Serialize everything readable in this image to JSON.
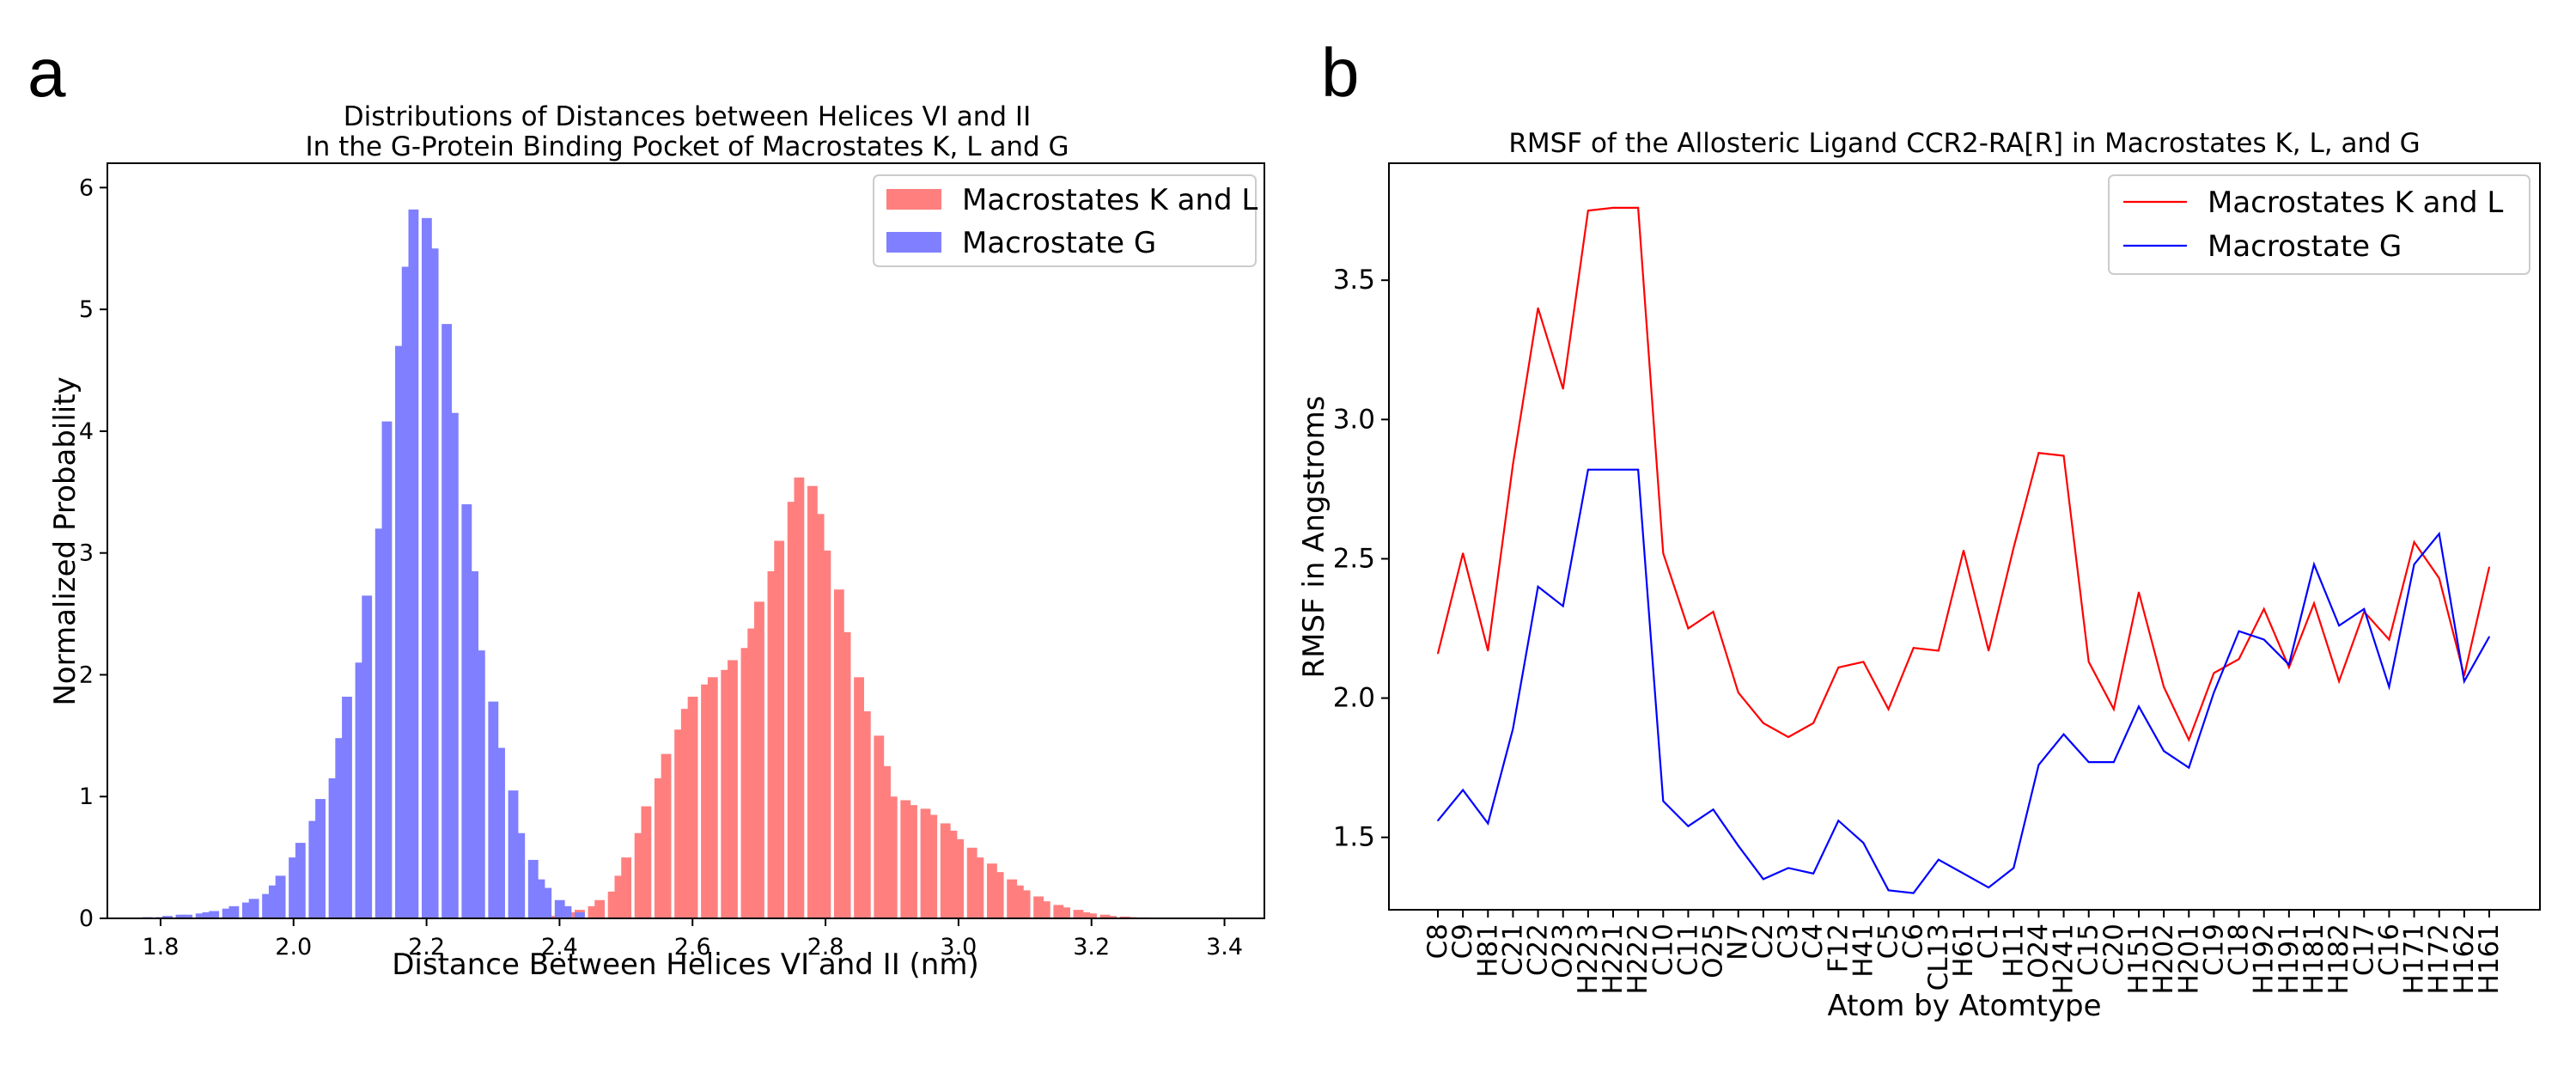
{
  "figure": {
    "panel_a": {
      "letter": "a"
    },
    "panel_b": {
      "letter": "b"
    }
  },
  "chart_data": [
    {
      "type": "bar",
      "subtype": "histogram",
      "title_lines": [
        "Distributions of Distances between Helices VI and II",
        "In the G-Protein Binding Pocket of Macrostates K, L and G"
      ],
      "xlabel": "Distance Between Helices VI and II (nm)",
      "ylabel": "Normalized Probability",
      "xlim": [
        1.72,
        3.46
      ],
      "ylim": [
        0,
        6.2
      ],
      "xticks": [
        "1.8",
        "2.0",
        "2.2",
        "2.4",
        "2.6",
        "2.8",
        "3.0",
        "3.2",
        "3.4"
      ],
      "yticks": [
        "0",
        "1",
        "2",
        "3",
        "4",
        "5",
        "6"
      ],
      "legend_position": "top-right",
      "grid": false,
      "bin_width": 0.0145,
      "series": [
        {
          "name": "Macrostates K and L",
          "color": "#ff7f7f",
          "x": [
            2.37,
            2.39,
            2.4,
            2.42,
            2.43,
            2.45,
            2.46,
            2.48,
            2.49,
            2.5,
            2.52,
            2.53,
            2.55,
            2.56,
            2.58,
            2.59,
            2.6,
            2.62,
            2.63,
            2.65,
            2.66,
            2.68,
            2.69,
            2.7,
            2.72,
            2.73,
            2.75,
            2.76,
            2.78,
            2.79,
            2.8,
            2.82,
            2.83,
            2.85,
            2.86,
            2.88,
            2.89,
            2.9,
            2.92,
            2.93,
            2.95,
            2.96,
            2.98,
            2.99,
            3.0,
            3.02,
            3.03,
            3.05,
            3.06,
            3.08,
            3.09,
            3.1,
            3.12,
            3.13,
            3.15,
            3.16,
            3.18,
            3.19,
            3.2,
            3.22,
            3.23,
            3.25,
            3.26,
            3.28,
            3.29,
            3.3,
            3.32
          ],
          "values": [
            0.01,
            0.02,
            0.03,
            0.05,
            0.07,
            0.1,
            0.15,
            0.22,
            0.35,
            0.5,
            0.7,
            0.92,
            1.15,
            1.35,
            1.55,
            1.72,
            1.82,
            1.92,
            1.98,
            2.04,
            2.12,
            2.22,
            2.38,
            2.6,
            2.85,
            3.1,
            3.42,
            3.62,
            3.55,
            3.32,
            3.02,
            2.7,
            2.35,
            1.98,
            1.7,
            1.5,
            1.25,
            1.0,
            0.97,
            0.93,
            0.9,
            0.85,
            0.78,
            0.72,
            0.65,
            0.58,
            0.5,
            0.45,
            0.38,
            0.32,
            0.27,
            0.23,
            0.18,
            0.14,
            0.11,
            0.09,
            0.07,
            0.05,
            0.04,
            0.03,
            0.02,
            0.015,
            0.01,
            0.008,
            0.006,
            0.004,
            0.003
          ]
        },
        {
          "name": "Macrostate G",
          "color": "#7f7fff",
          "x": [
            1.78,
            1.8,
            1.81,
            1.83,
            1.84,
            1.86,
            1.87,
            1.88,
            1.9,
            1.91,
            1.93,
            1.94,
            1.96,
            1.97,
            1.98,
            2.0,
            2.01,
            2.03,
            2.04,
            2.06,
            2.07,
            2.08,
            2.1,
            2.11,
            2.13,
            2.14,
            2.16,
            2.17,
            2.18,
            2.2,
            2.21,
            2.23,
            2.24,
            2.26,
            2.27,
            2.28,
            2.3,
            2.31,
            2.33,
            2.34,
            2.36,
            2.37,
            2.38,
            2.4,
            2.41,
            2.43
          ],
          "values": [
            0.01,
            0.01,
            0.02,
            0.03,
            0.03,
            0.04,
            0.05,
            0.06,
            0.08,
            0.1,
            0.13,
            0.16,
            0.2,
            0.27,
            0.35,
            0.5,
            0.62,
            0.8,
            0.98,
            1.15,
            1.48,
            1.82,
            2.1,
            2.65,
            3.2,
            4.08,
            4.7,
            5.35,
            5.82,
            5.75,
            5.5,
            4.88,
            4.15,
            3.4,
            2.85,
            2.2,
            1.78,
            1.4,
            1.05,
            0.7,
            0.48,
            0.32,
            0.25,
            0.15,
            0.1,
            0.05
          ]
        }
      ]
    },
    {
      "type": "line",
      "title": "RMSF of the Allosteric Ligand CCR2-RA[R] in Macrostates K, L, and G",
      "xlabel": "Atom by Atomtype",
      "ylabel": "RMSF in Angstroms",
      "ylim": [
        1.24,
        3.92
      ],
      "yticks": [
        "1.5",
        "2.0",
        "2.5",
        "3.0",
        "3.5"
      ],
      "legend_position": "top-right",
      "grid": false,
      "categories": [
        "C8",
        "C9",
        "H81",
        "C21",
        "C22",
        "O23",
        "H223",
        "H221",
        "H222",
        "C10",
        "C11",
        "O25",
        "N7",
        "C2",
        "C3",
        "C4",
        "F12",
        "H41",
        "C5",
        "C6",
        "CL13",
        "H61",
        "C1",
        "H11",
        "O24",
        "H241",
        "C15",
        "C20",
        "H151",
        "H202",
        "H201",
        "C19",
        "C18",
        "H192",
        "H191",
        "H181",
        "H182",
        "C17",
        "C16",
        "H171",
        "H172",
        "H162",
        "H161"
      ],
      "series": [
        {
          "name": "Macrostates K and L",
          "color": "#ff0000",
          "values": [
            2.16,
            2.52,
            2.17,
            2.84,
            3.4,
            3.11,
            3.75,
            3.76,
            3.76,
            2.52,
            2.25,
            2.31,
            2.02,
            1.91,
            1.86,
            1.91,
            2.11,
            2.13,
            1.96,
            2.18,
            2.17,
            2.53,
            2.17,
            2.54,
            2.88,
            2.87,
            2.13,
            1.96,
            2.38,
            2.04,
            1.85,
            2.09,
            2.14,
            2.32,
            2.11,
            2.34,
            2.06,
            2.31,
            2.21,
            2.56,
            2.43,
            2.08,
            2.47
          ]
        },
        {
          "name": "Macrostate G",
          "color": "#0000ff",
          "values": [
            1.56,
            1.67,
            1.55,
            1.89,
            2.4,
            2.33,
            2.82,
            2.82,
            2.82,
            1.63,
            1.54,
            1.6,
            1.47,
            1.35,
            1.39,
            1.37,
            1.56,
            1.48,
            1.31,
            1.3,
            1.42,
            1.37,
            1.32,
            1.39,
            1.76,
            1.87,
            1.77,
            1.77,
            1.97,
            1.81,
            1.75,
            2.02,
            2.24,
            2.21,
            2.12,
            2.48,
            2.26,
            2.32,
            2.04,
            2.48,
            2.59,
            2.06,
            2.22
          ]
        }
      ]
    }
  ]
}
